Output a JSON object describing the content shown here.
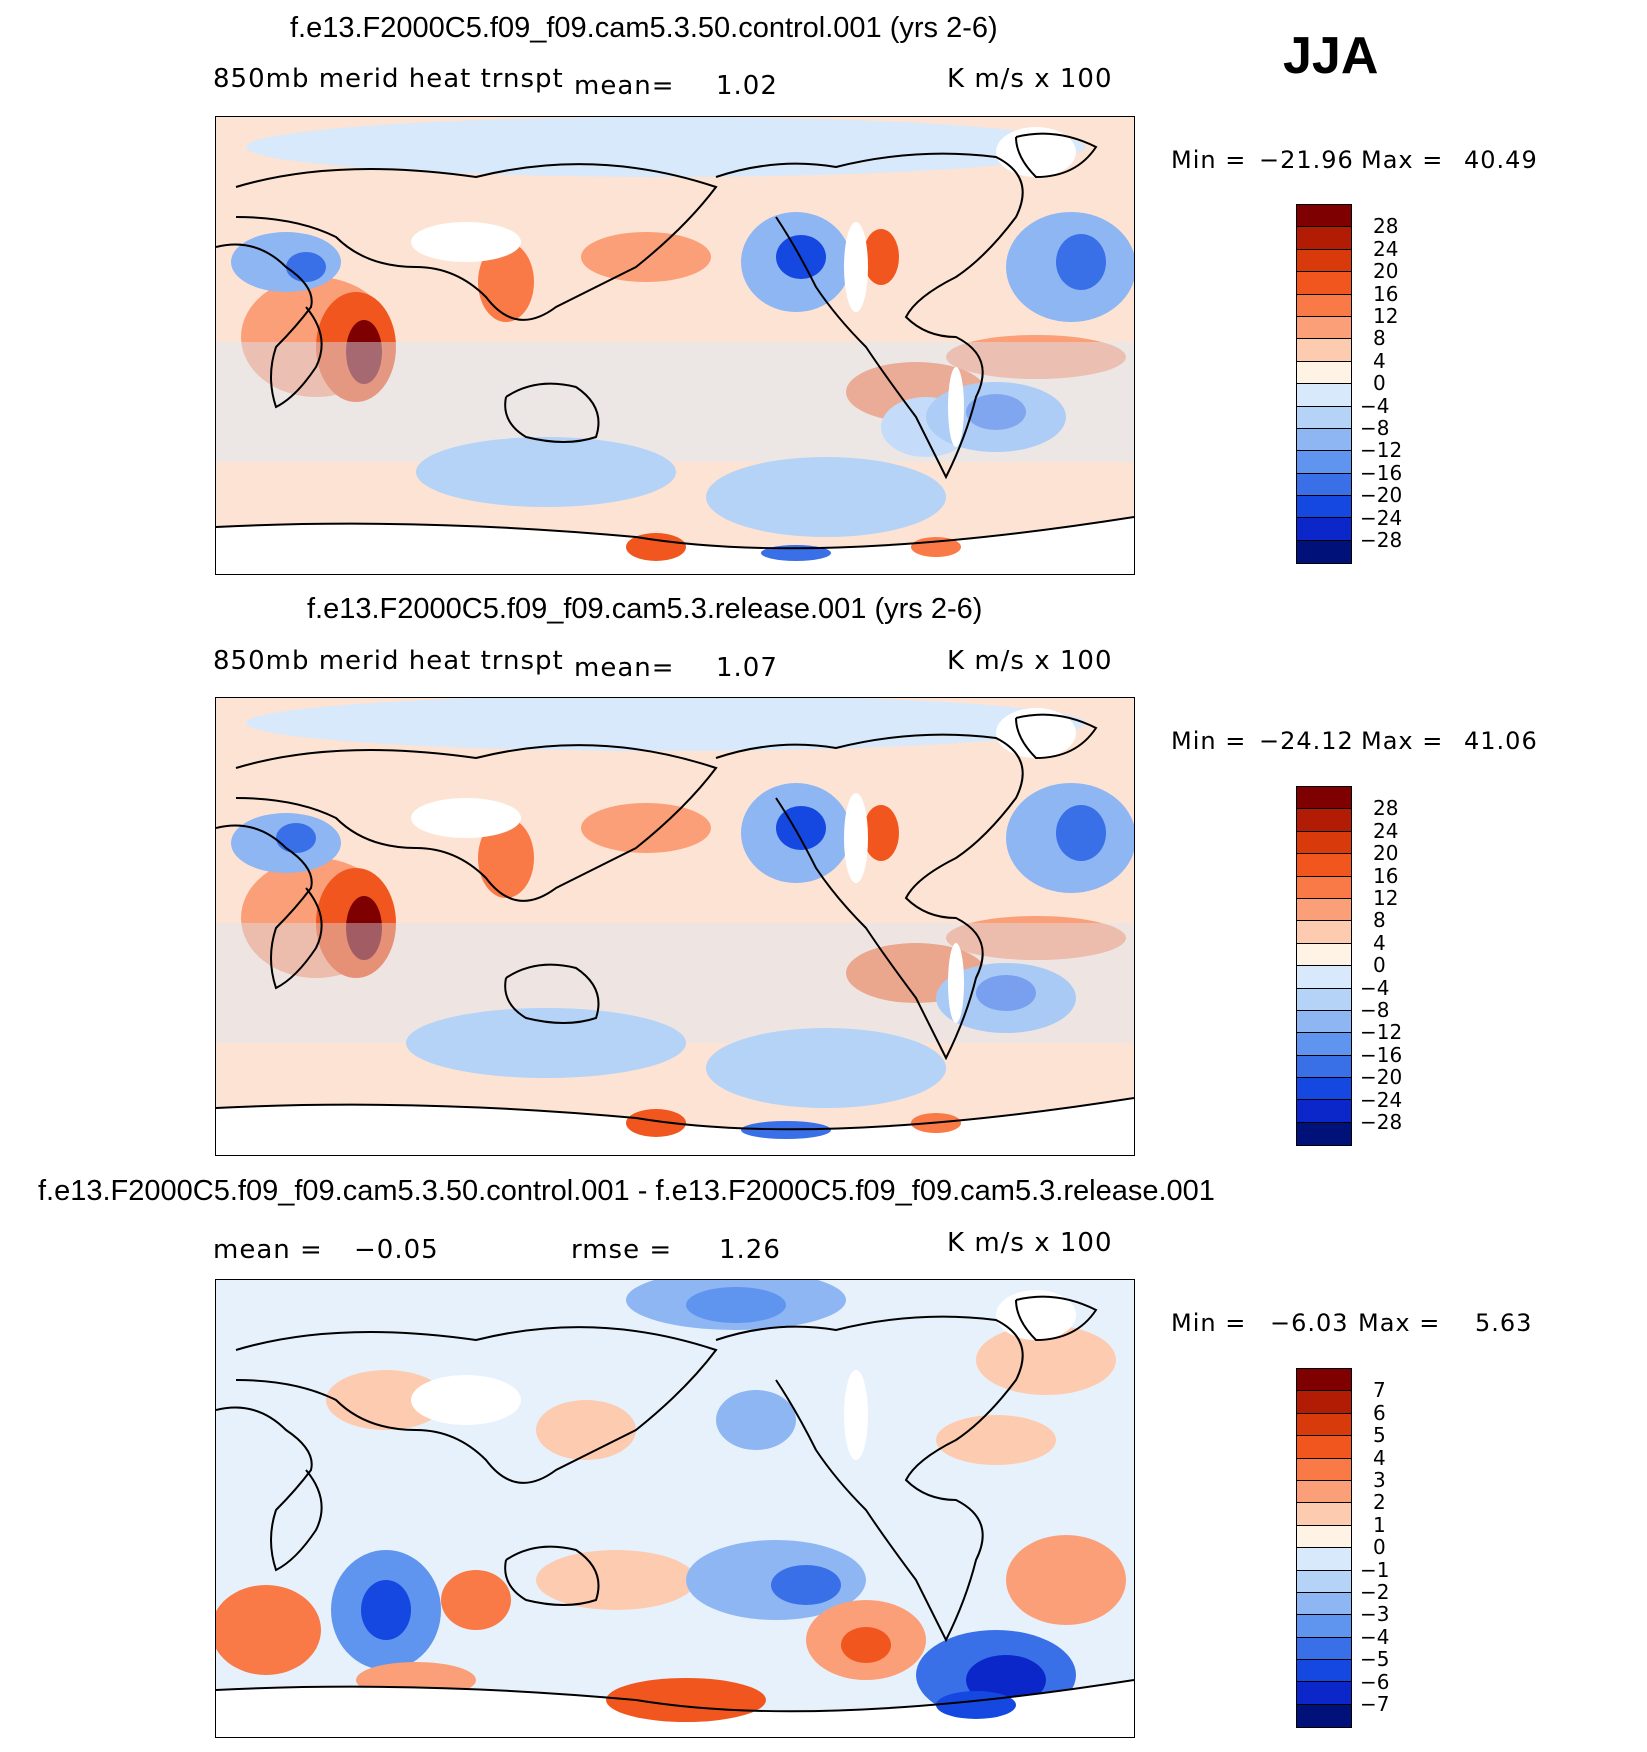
{
  "season": "JJA",
  "panels": [
    {
      "id": "control",
      "title": "f.e13.F2000C5.f09_f09.cam5.3.50.control.001 (yrs 2-6)",
      "variable": "850mb merid heat trnspt",
      "mean_text": "mean=",
      "mean_value": "1.02",
      "units": "K m/s x 100",
      "min_label": "Min =",
      "min_value": "−21.96",
      "max_label": "Max =",
      "max_value": "40.49",
      "colorbar_labels": [
        "28",
        "24",
        "20",
        "16",
        "12",
        "8",
        "4",
        "0",
        "−4",
        "−8",
        "−12",
        "−16",
        "−20",
        "−24",
        "−28"
      ]
    },
    {
      "id": "release",
      "title": "f.e13.F2000C5.f09_f09.cam5.3.release.001 (yrs 2-6)",
      "variable": "850mb merid heat trnspt",
      "mean_text": "mean=",
      "mean_value": "1.07",
      "units": "K m/s x 100",
      "min_label": "Min =",
      "min_value": "−24.12",
      "max_label": "Max =",
      "max_value": "41.06",
      "colorbar_labels": [
        "28",
        "24",
        "20",
        "16",
        "12",
        "8",
        "4",
        "0",
        "−4",
        "−8",
        "−12",
        "−16",
        "−20",
        "−24",
        "−28"
      ]
    },
    {
      "id": "difference",
      "title": "f.e13.F2000C5.f09_f09.cam5.3.50.control.001 - f.e13.F2000C5.f09_f09.cam5.3.release.001",
      "mean_text": "mean =",
      "mean_value": "−0.05",
      "rmse_text": "rmse =",
      "rmse_value": "1.26",
      "units": "K m/s x 100",
      "min_label": "Min =",
      "min_value": "−6.03",
      "max_label": "Max =",
      "max_value": "5.63",
      "colorbar_labels": [
        "7",
        "6",
        "5",
        "4",
        "3",
        "2",
        "1",
        "0",
        "−1",
        "−2",
        "−3",
        "−4",
        "−5",
        "−6",
        "−7"
      ]
    }
  ],
  "colorbar_colors": [
    "#7f0000",
    "#b21c04",
    "#d93a0c",
    "#f1561e",
    "#f97a46",
    "#fb9f78",
    "#fdcbb0",
    "#fff3e6",
    "#d7e9fb",
    "#b5d2f7",
    "#8db6f3",
    "#5f95ee",
    "#3970e8",
    "#1548e0",
    "#0b27c9",
    "#00127a"
  ]
}
